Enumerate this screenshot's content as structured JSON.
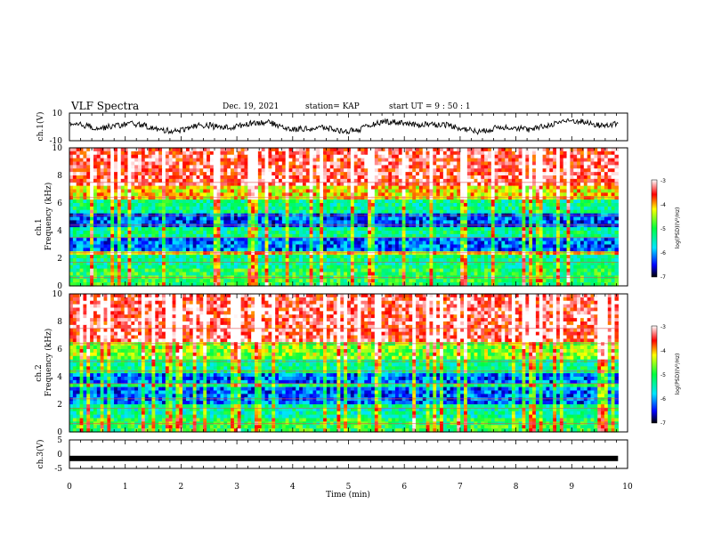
{
  "header": {
    "title": "VLF Spectra",
    "date": "Dec. 19, 2021",
    "station": "station= KAP",
    "start": "start  UT =   9 : 50 : 1"
  },
  "chart_data": [
    {
      "type": "line",
      "ylabel": "ch.1(V)",
      "ylim": [
        -10,
        10
      ],
      "y_tick_labels": [
        "10",
        "-10"
      ],
      "x_range_min": [
        0,
        9.83
      ],
      "description_values": "noisy waveform between about -6 and 8 V"
    },
    {
      "type": "heatmap",
      "ylabel": "ch.1\nFrequency (kHz)",
      "ylim": [
        0,
        10
      ],
      "y_tick_labels": [
        "0",
        "2",
        "4",
        "6",
        "8",
        "10"
      ],
      "colorbar": {
        "label": "log(PSD)(V²/Hz)",
        "range": [
          -7,
          -3
        ],
        "tick_labels": [
          "-3",
          "-4",
          "-5",
          "-6",
          "-7"
        ]
      },
      "bands": [
        {
          "from": 0,
          "to": 1.2,
          "level": -5.0
        },
        {
          "from": 1.2,
          "to": 2.2,
          "level": -5.3
        },
        {
          "from": 2.2,
          "to": 2.6,
          "level": -4.2
        },
        {
          "from": 2.6,
          "to": 3.6,
          "level": -6.2
        },
        {
          "from": 3.6,
          "to": 4.3,
          "level": -5.3
        },
        {
          "from": 4.3,
          "to": 5.3,
          "level": -6.3
        },
        {
          "from": 5.3,
          "to": 6.3,
          "level": -5.3
        },
        {
          "from": 6.3,
          "to": 7.2,
          "level": -4.2
        },
        {
          "from": 7.2,
          "to": 10,
          "level": -3.4
        }
      ]
    },
    {
      "type": "heatmap",
      "ylabel": "ch.2\nFrequency (kHz)",
      "ylim": [
        0,
        10
      ],
      "y_tick_labels": [
        "0",
        "2",
        "4",
        "6",
        "8",
        "10"
      ],
      "colorbar": {
        "label": "log(PSD)(V²/Hz)",
        "range": [
          -7,
          -3
        ],
        "tick_labels": [
          "-3",
          "-4",
          "-5",
          "-6",
          "-7"
        ]
      },
      "bands": [
        {
          "from": 0,
          "to": 1.0,
          "level": -5.0
        },
        {
          "from": 1.0,
          "to": 2.1,
          "level": -5.4
        },
        {
          "from": 2.1,
          "to": 3.2,
          "level": -6.2
        },
        {
          "from": 3.2,
          "to": 3.6,
          "level": -5.2
        },
        {
          "from": 3.6,
          "to": 4.3,
          "level": -6.2
        },
        {
          "from": 4.3,
          "to": 5.3,
          "level": -5.3
        },
        {
          "from": 5.3,
          "to": 6.5,
          "level": -4.6
        },
        {
          "from": 6.5,
          "to": 10,
          "level": -3.4
        }
      ]
    },
    {
      "type": "line",
      "ylabel": "ch.3(V)",
      "ylim": [
        -5,
        5
      ],
      "y_tick_labels": [
        "5",
        "0",
        "-5"
      ],
      "x_range_min": [
        0,
        9.83
      ],
      "value_approx": -1.5
    }
  ],
  "x_axis": {
    "xlabel": "Time (min)",
    "xlim": [
      0,
      10
    ],
    "tick_labels": [
      "0",
      "1",
      "2",
      "3",
      "4",
      "5",
      "6",
      "7",
      "8",
      "9",
      "10"
    ]
  }
}
